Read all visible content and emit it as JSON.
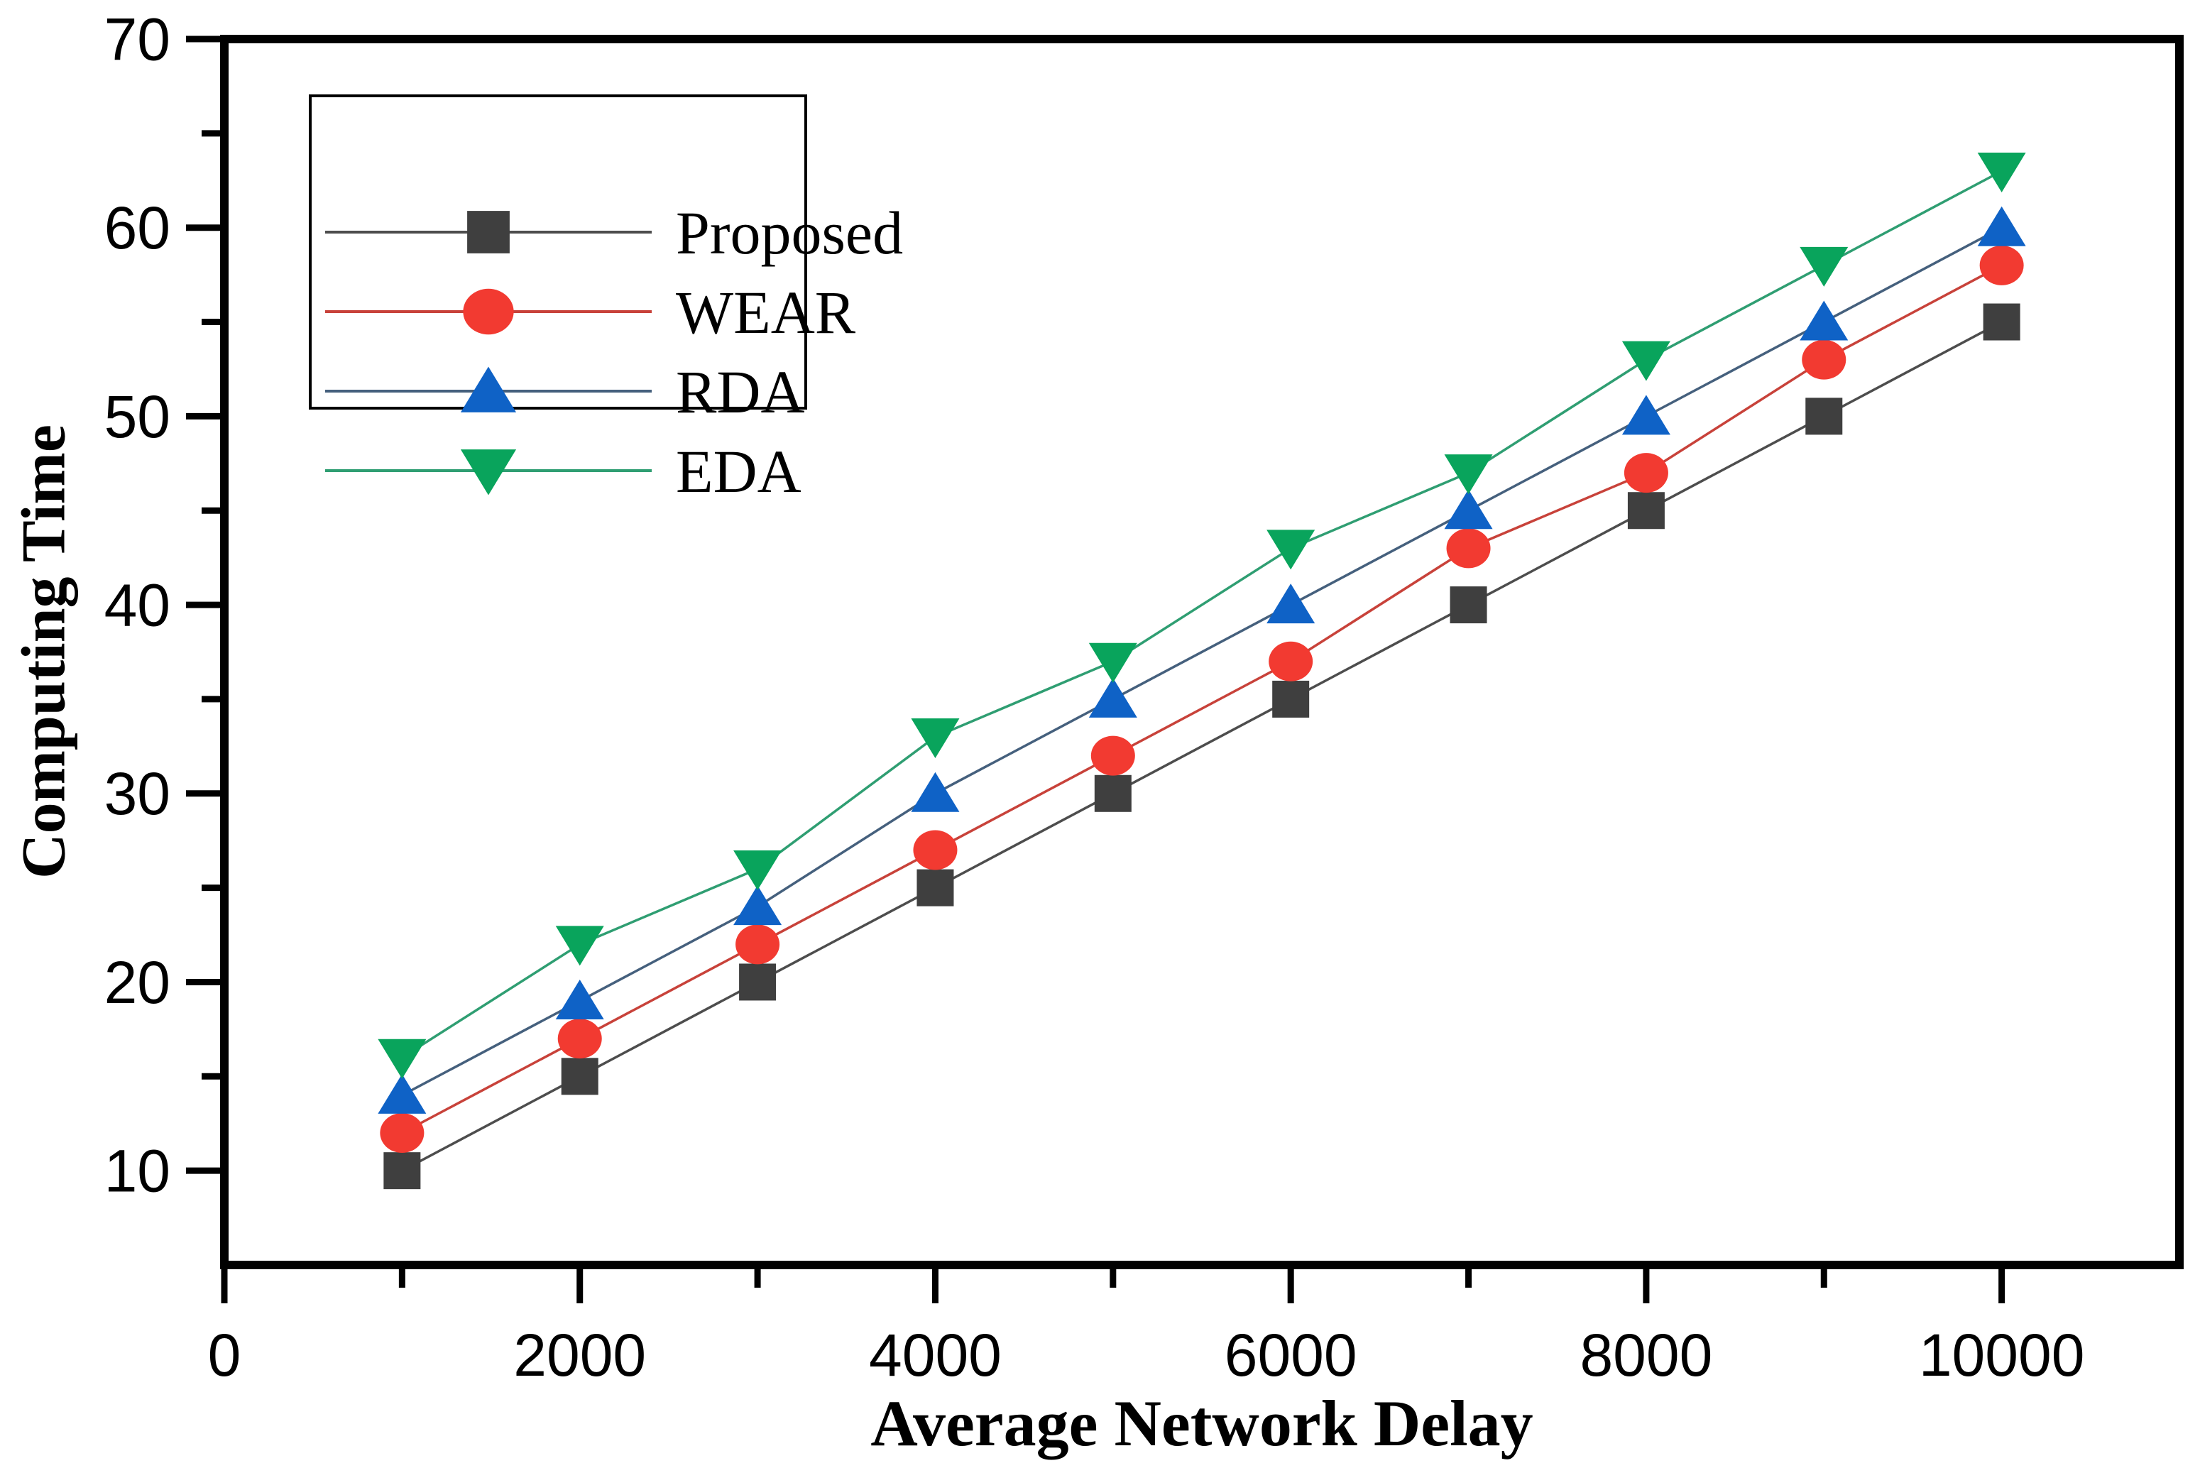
{
  "chart_data": {
    "type": "line",
    "title": "",
    "xlabel": "Average Network Delay",
    "ylabel": "Computing Time",
    "x": [
      1000,
      2000,
      3000,
      4000,
      5000,
      6000,
      7000,
      8000,
      9000,
      10000
    ],
    "xlim": [
      0,
      11000
    ],
    "ylim": [
      5,
      70
    ],
    "x_major_ticks": [
      0,
      2000,
      4000,
      6000,
      8000,
      10000
    ],
    "x_tick_labels": [
      "0",
      "2000",
      "4000",
      "6000",
      "8000",
      "10000"
    ],
    "x_minor_ticks": [
      1000,
      3000,
      5000,
      7000,
      9000
    ],
    "y_major_ticks": [
      10,
      20,
      30,
      40,
      50,
      60,
      70
    ],
    "y_tick_labels": [
      "10",
      "20",
      "30",
      "40",
      "50",
      "60",
      "70"
    ],
    "y_minor_ticks": [
      15,
      25,
      35,
      45,
      55,
      65
    ],
    "grid": false,
    "legend_position": "top-left",
    "series": [
      {
        "name": "Proposed",
        "marker": "square",
        "marker_color": "#3f3f3f",
        "line_color": "#4d4d4d",
        "values": [
          10,
          15,
          20,
          25,
          30,
          35,
          40,
          45,
          50,
          55
        ]
      },
      {
        "name": "WEAR",
        "marker": "circle",
        "marker_color": "#f23a31",
        "line_color": "#c8423a",
        "values": [
          12,
          17,
          22,
          27,
          32,
          37,
          43,
          47,
          53,
          58
        ]
      },
      {
        "name": "RDA",
        "marker": "triangle-up",
        "marker_color": "#0f62c6",
        "line_color": "#45607d",
        "values": [
          14,
          19,
          24,
          30,
          35,
          40,
          45,
          50,
          55,
          60
        ]
      },
      {
        "name": "EDA",
        "marker": "triangle-down",
        "marker_color": "#09a45c",
        "line_color": "#2f9e72",
        "values": [
          16,
          22,
          26,
          33,
          37,
          43,
          47,
          53,
          58,
          63
        ]
      }
    ]
  },
  "frame_color": "#000000",
  "tick_label_color": "#000000",
  "legend_border_color": "#000000",
  "legend_background": "#ffffff"
}
